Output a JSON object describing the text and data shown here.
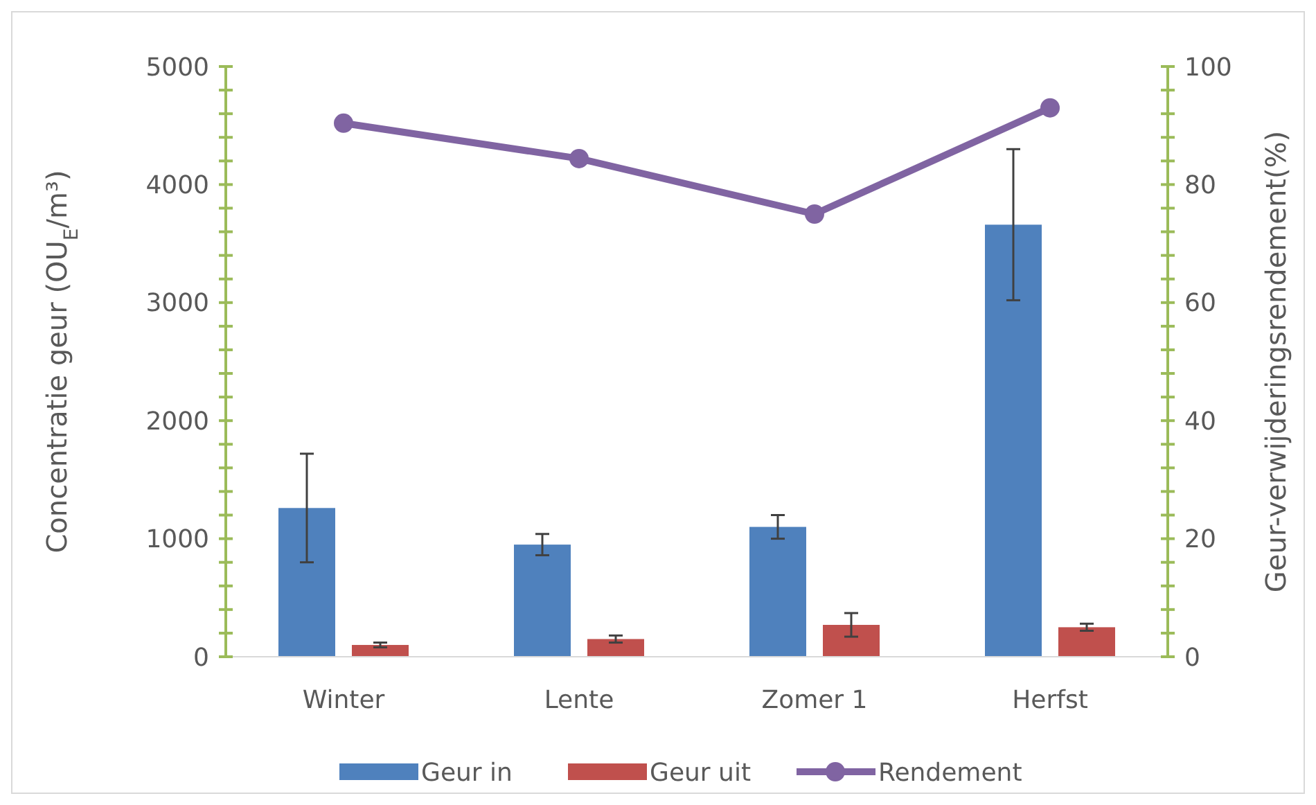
{
  "chart_data": {
    "type": "bar",
    "categories": [
      "Winter",
      "Lente",
      "Zomer 1",
      "Herfst"
    ],
    "ylabel": "Concentratie geur (OU$_{E}$/m³)",
    "y2label": "Geur-verwijderingsrendement(%)",
    "ylim": [
      0,
      5000
    ],
    "yticks": [
      0,
      {
        "value": 200,
        "label": null
      },
      {
        "value": 400,
        "label": null
      },
      {
        "value": 600,
        "label": null
      },
      {
        "value": 800,
        "label": null
      },
      1000,
      {
        "value": 1200,
        "label": null
      },
      {
        "value": 1400,
        "label": null
      },
      {
        "value": 1600,
        "label": null
      },
      {
        "value": 1800,
        "label": null
      },
      2000,
      {
        "value": 2200,
        "label": null
      },
      {
        "value": 2400,
        "label": null
      },
      {
        "value": 2600,
        "label": null
      },
      {
        "value": 2800,
        "label": null
      },
      3000,
      {
        "value": 3200,
        "label": null
      },
      {
        "value": 3400,
        "label": null
      },
      {
        "value": 3600,
        "label": null
      },
      {
        "value": 3800,
        "label": null
      },
      4000,
      {
        "value": 4200,
        "label": null
      },
      {
        "value": 4400,
        "label": null
      },
      {
        "value": 4600,
        "label": null
      },
      {
        "value": 4800,
        "label": null
      },
      5000
    ],
    "y2lim": [
      0,
      100
    ],
    "y2ticks": [
      0,
      {
        "value": 4,
        "label": null
      },
      {
        "value": 8,
        "label": null
      },
      {
        "value": 12,
        "label": null
      },
      {
        "value": 16,
        "label": null
      },
      20,
      {
        "value": 24,
        "label": null
      },
      {
        "value": 28,
        "label": null
      },
      {
        "value": 32,
        "label": null
      },
      {
        "value": 36,
        "label": null
      },
      40,
      {
        "value": 44,
        "label": null
      },
      {
        "value": 48,
        "label": null
      },
      {
        "value": 52,
        "label": null
      },
      {
        "value": 56,
        "label": null
      },
      60,
      {
        "value": 64,
        "label": null
      },
      {
        "value": 68,
        "label": null
      },
      {
        "value": 72,
        "label": null
      },
      {
        "value": 76,
        "label": null
      },
      80,
      {
        "value": 84,
        "label": null
      },
      {
        "value": 88,
        "label": null
      },
      {
        "value": 92,
        "label": null
      },
      {
        "value": 96,
        "label": null
      },
      100
    ],
    "series": [
      {
        "name": "Geur in",
        "color": "#4f81bd",
        "values": [
          1260,
          950,
          1100,
          3660
        ],
        "errors": [
          460,
          90,
          100,
          640
        ]
      },
      {
        "name": "Geur uit",
        "color": "#c0504d",
        "values": [
          100,
          150,
          270,
          250
        ],
        "errors": [
          20,
          30,
          100,
          30
        ]
      },
      {
        "name": "Rendement",
        "type": "line",
        "axis": "y2",
        "color": "#8064a2",
        "values": [
          90.4,
          84.4,
          75.0,
          93.0
        ],
        "marker": "circle"
      }
    ],
    "legend": "bottom",
    "grid": false
  }
}
